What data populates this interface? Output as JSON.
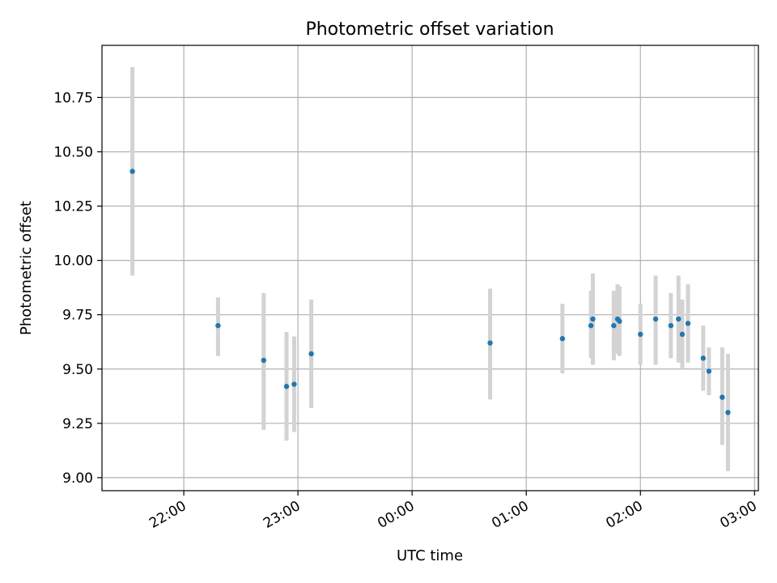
{
  "chart_data": {
    "type": "scatter",
    "title": "Photometric offset variation",
    "xlabel": "UTC time",
    "ylabel": "Photometric offset",
    "grid": true,
    "x_tick_labels": [
      "22:00",
      "23:00",
      "00:00",
      "01:00",
      "02:00",
      "03:00"
    ],
    "x_tick_times": [
      "22:00",
      "23:00",
      "24:00",
      "25:00",
      "26:00",
      "27:00"
    ],
    "y_ticks": [
      9.0,
      9.25,
      9.5,
      9.75,
      10.0,
      10.25,
      10.5,
      10.75
    ],
    "y_tick_labels": [
      "9.00",
      "9.25",
      "9.50",
      "9.75",
      "10.00",
      "10.25",
      "10.50",
      "10.75"
    ],
    "xlim": [
      "21:17",
      "27:02"
    ],
    "ylim": [
      8.94,
      10.99
    ],
    "colors": {
      "point": "#1f77b4",
      "errorbar": "#d3d3d3",
      "grid": "#b0b0b0"
    },
    "points": [
      {
        "t": "21:33",
        "y": 10.41,
        "lo": 9.93,
        "hi": 10.89
      },
      {
        "t": "22:18",
        "y": 9.7,
        "lo": 9.56,
        "hi": 9.83
      },
      {
        "t": "22:42",
        "y": 9.54,
        "lo": 9.22,
        "hi": 9.85
      },
      {
        "t": "22:54",
        "y": 9.42,
        "lo": 9.17,
        "hi": 9.67
      },
      {
        "t": "22:58",
        "y": 9.43,
        "lo": 9.21,
        "hi": 9.65
      },
      {
        "t": "23:07",
        "y": 9.57,
        "lo": 9.32,
        "hi": 9.82
      },
      {
        "t": "24:41",
        "y": 9.62,
        "lo": 9.36,
        "hi": 9.87
      },
      {
        "t": "25:19",
        "y": 9.64,
        "lo": 9.48,
        "hi": 9.8
      },
      {
        "t": "25:34",
        "y": 9.7,
        "lo": 9.55,
        "hi": 9.86
      },
      {
        "t": "25:35",
        "y": 9.73,
        "lo": 9.52,
        "hi": 9.94
      },
      {
        "t": "25:46",
        "y": 9.7,
        "lo": 9.54,
        "hi": 9.86
      },
      {
        "t": "25:48",
        "y": 9.73,
        "lo": 9.57,
        "hi": 9.89
      },
      {
        "t": "25:49",
        "y": 9.72,
        "lo": 9.56,
        "hi": 9.88
      },
      {
        "t": "26:00",
        "y": 9.66,
        "lo": 9.52,
        "hi": 9.8
      },
      {
        "t": "26:08",
        "y": 9.73,
        "lo": 9.52,
        "hi": 9.93
      },
      {
        "t": "26:16",
        "y": 9.7,
        "lo": 9.55,
        "hi": 9.85
      },
      {
        "t": "26:20",
        "y": 9.73,
        "lo": 9.53,
        "hi": 9.93
      },
      {
        "t": "26:22",
        "y": 9.66,
        "lo": 9.5,
        "hi": 9.82
      },
      {
        "t": "26:25",
        "y": 9.71,
        "lo": 9.53,
        "hi": 9.89
      },
      {
        "t": "26:33",
        "y": 9.55,
        "lo": 9.4,
        "hi": 9.7
      },
      {
        "t": "26:36",
        "y": 9.49,
        "lo": 9.38,
        "hi": 9.6
      },
      {
        "t": "26:43",
        "y": 9.37,
        "lo": 9.15,
        "hi": 9.6
      },
      {
        "t": "26:46",
        "y": 9.3,
        "lo": 9.03,
        "hi": 9.57
      }
    ]
  }
}
